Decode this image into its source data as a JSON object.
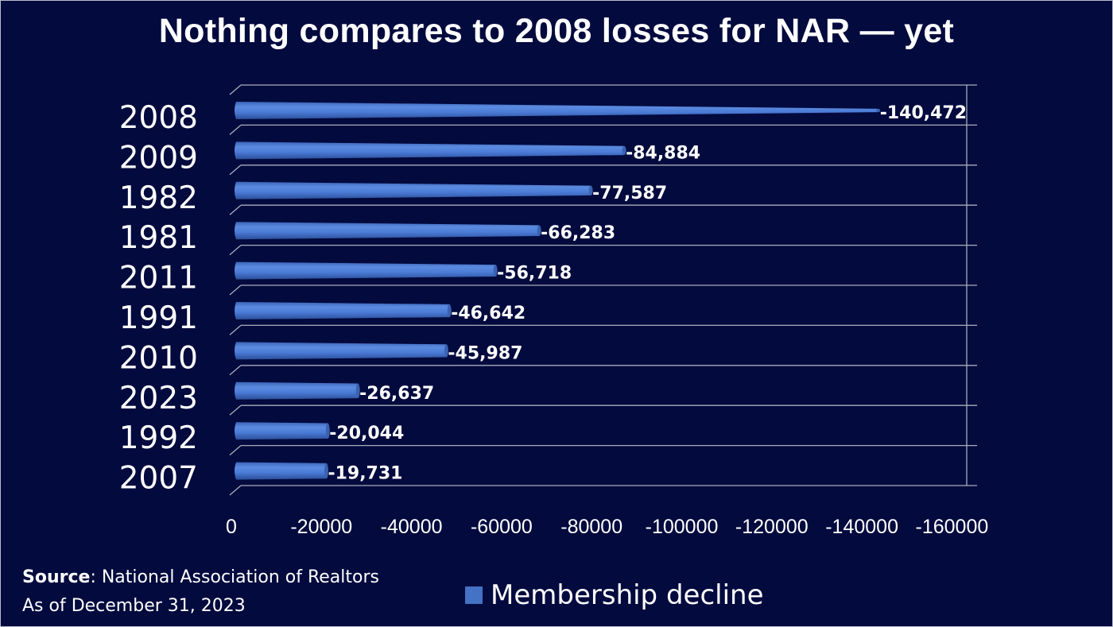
{
  "chart_data": {
    "type": "bar",
    "orientation": "horizontal",
    "title": "Nothing compares to 2008 losses for NAR — yet",
    "categories": [
      "2008",
      "2009",
      "1982",
      "1981",
      "2011",
      "1991",
      "2010",
      "2023",
      "1992",
      "2007"
    ],
    "series": [
      {
        "name": "Membership decline",
        "values": [
          -140472,
          -84884,
          -77587,
          -66283,
          -56718,
          -46642,
          -45987,
          -26637,
          -20044,
          -19731
        ]
      }
    ],
    "data_labels": [
      "-140,472",
      "-84,884",
      "-77,587",
      "-66,283",
      "-56,718",
      "-46,642",
      "-45,987",
      "-26,637",
      "-20,044",
      "-19,731"
    ],
    "x_ticks": [
      "0",
      "-20000",
      "-40000",
      "-60000",
      "-80000",
      "-100000",
      "-120000",
      "-140000",
      "-160000"
    ],
    "xlim": [
      0,
      -160000
    ],
    "grid": true,
    "legend": "bottom",
    "bar_color": "#4472c4",
    "background": "#020a3e"
  },
  "footer": {
    "source_label": "Source",
    "source_text": ": National Association of Realtors",
    "as_of": "As of December 31, 2023"
  }
}
